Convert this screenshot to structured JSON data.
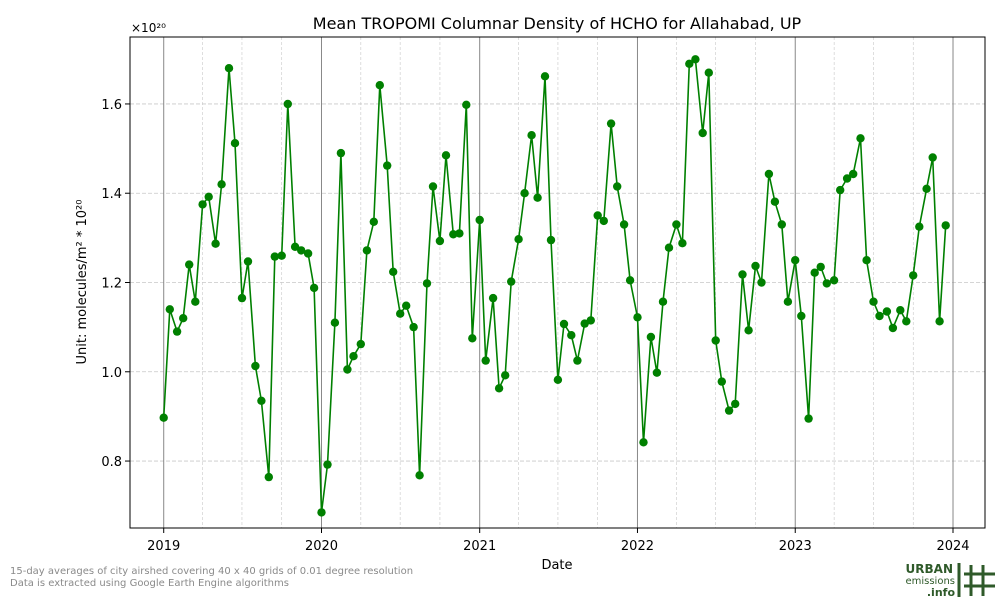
{
  "chart_data": {
    "type": "line",
    "title": "Mean TROPOMI Columnar Density of HCHO for Allahabad, UP",
    "xlabel": "Date",
    "ylabel": "Unit: molecules/m² * 10²⁰",
    "y_multiplier": "×10²⁰",
    "xlim": [
      "2018-10-15",
      "2024-03-15"
    ],
    "ylim": [
      0.65,
      1.75
    ],
    "x_ticks": [
      "2019",
      "2020",
      "2021",
      "2022",
      "2023",
      "2024"
    ],
    "y_ticks": [
      "0.8",
      "1.0",
      "1.2",
      "1.4",
      "1.6"
    ],
    "grid": true,
    "colors": {
      "series": "#008000",
      "year_line": "#888888",
      "grid": "#c8c8c8"
    },
    "series": [
      {
        "x": [
          "2019-01-01",
          "2019-01-15",
          "2019-02-01",
          "2019-02-15",
          "2019-03-01",
          "2019-03-15",
          "2019-04-01",
          "2019-04-15",
          "2019-05-01",
          "2019-05-15",
          "2019-06-01",
          "2019-06-15",
          "2019-07-01",
          "2019-07-15",
          "2019-08-01",
          "2019-08-15",
          "2019-09-01",
          "2019-09-15",
          "2019-10-01",
          "2019-10-15",
          "2019-11-01",
          "2019-11-15",
          "2019-12-01",
          "2019-12-15",
          "2020-01-01",
          "2020-01-15",
          "2020-02-01",
          "2020-02-15",
          "2020-03-01",
          "2020-03-15",
          "2020-04-01",
          "2020-04-15",
          "2020-05-01",
          "2020-05-15",
          "2020-06-01",
          "2020-06-15",
          "2020-07-01",
          "2020-07-15",
          "2020-08-01",
          "2020-08-15",
          "2020-09-01",
          "2020-09-15",
          "2020-10-01",
          "2020-10-15",
          "2020-11-01",
          "2020-11-15",
          "2020-12-01",
          "2020-12-15",
          "2021-01-01",
          "2021-01-15",
          "2021-02-01",
          "2021-02-15",
          "2021-03-01",
          "2021-03-15",
          "2021-04-01",
          "2021-04-15",
          "2021-05-01",
          "2021-05-15",
          "2021-06-01",
          "2021-06-15",
          "2021-07-01",
          "2021-07-15",
          "2021-08-01",
          "2021-08-15",
          "2021-09-01",
          "2021-09-15",
          "2021-10-01",
          "2021-10-15",
          "2021-11-01",
          "2021-11-15",
          "2021-12-01",
          "2021-12-15",
          "2022-01-01",
          "2022-01-15",
          "2022-02-01",
          "2022-02-15",
          "2022-03-01",
          "2022-03-15",
          "2022-04-01",
          "2022-04-15",
          "2022-05-01",
          "2022-05-15",
          "2022-06-01",
          "2022-06-15",
          "2022-07-01",
          "2022-07-15",
          "2022-08-01",
          "2022-08-15",
          "2022-09-01",
          "2022-09-15",
          "2022-10-01",
          "2022-10-15",
          "2022-11-01",
          "2022-11-15",
          "2022-12-01",
          "2022-12-15",
          "2023-01-01",
          "2023-01-15",
          "2023-02-01",
          "2023-02-15",
          "2023-03-01",
          "2023-03-15",
          "2023-04-01",
          "2023-04-15",
          "2023-05-01",
          "2023-05-15",
          "2023-06-01",
          "2023-06-15",
          "2023-07-01",
          "2023-07-15",
          "2023-08-01",
          "2023-08-15",
          "2023-09-01",
          "2023-09-15",
          "2023-10-01",
          "2023-10-15",
          "2023-11-01",
          "2023-11-15",
          "2023-12-01",
          "2023-12-15"
        ],
        "values": [
          0.897,
          1.14,
          1.09,
          1.12,
          1.24,
          1.157,
          1.375,
          1.392,
          1.287,
          1.42,
          1.68,
          1.512,
          1.165,
          1.247,
          1.013,
          0.935,
          0.764,
          1.258,
          1.26,
          1.6,
          1.28,
          1.272,
          1.265,
          1.188,
          0.685,
          0.792,
          1.11,
          1.49,
          1.005,
          1.035,
          1.062,
          1.272,
          1.336,
          1.642,
          1.462,
          1.224,
          1.13,
          1.148,
          1.1,
          0.768,
          1.198,
          1.415,
          1.293,
          1.485,
          1.308,
          1.31,
          1.598,
          1.075,
          1.34,
          1.025,
          1.165,
          0.963,
          0.992,
          1.202,
          1.297,
          1.4,
          1.53,
          1.39,
          1.662,
          1.295,
          0.982,
          1.107,
          1.082,
          1.025,
          1.108,
          1.115,
          1.35,
          1.338,
          1.556,
          1.415,
          1.33,
          1.205,
          1.122,
          0.842,
          1.078,
          0.998,
          1.157,
          1.278,
          1.33,
          1.288,
          1.69,
          1.7,
          1.535,
          1.67,
          1.07,
          0.978,
          0.913,
          0.928,
          1.218,
          1.093,
          1.237,
          1.2,
          1.443,
          1.381,
          1.33,
          1.157,
          1.25,
          1.125,
          0.895,
          1.222,
          1.235,
          1.198,
          1.205,
          1.407,
          1.433,
          1.443,
          1.523,
          1.25,
          1.157,
          1.125,
          1.135,
          1.098,
          1.138,
          1.113,
          1.216,
          1.325,
          1.41,
          1.48,
          1.113,
          1.328
        ]
      }
    ]
  },
  "footnote": {
    "line1": "15-day averages of city airshed covering 40 x 40 grids of 0.01 degree resolution",
    "line2": "Data is extracted using Google Earth Engine algorithms"
  },
  "logo": {
    "line1": "URBAN",
    "line2": "emissions",
    "line3": ".info"
  }
}
